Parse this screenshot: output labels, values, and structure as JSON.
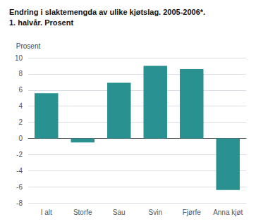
{
  "chart_data": {
    "type": "bar",
    "title": "Endring i slaktemengda av ulike kjøtslag. 2005-2006*.",
    "subtitle": "1. halvår. Prosent",
    "ylabel": "Prosent",
    "categories": [
      "I alt",
      "Storfe",
      "Sau",
      "Svin",
      "Fjørfe",
      "Anna kjøt"
    ],
    "values": [
      5.6,
      -0.5,
      6.9,
      9.0,
      8.6,
      -6.4
    ],
    "color": "#2a9191",
    "ylim": [
      -8,
      10
    ],
    "yticks": [
      -8,
      -6,
      -4,
      -2,
      0,
      2,
      4,
      6,
      8,
      10
    ],
    "grid": true
  }
}
